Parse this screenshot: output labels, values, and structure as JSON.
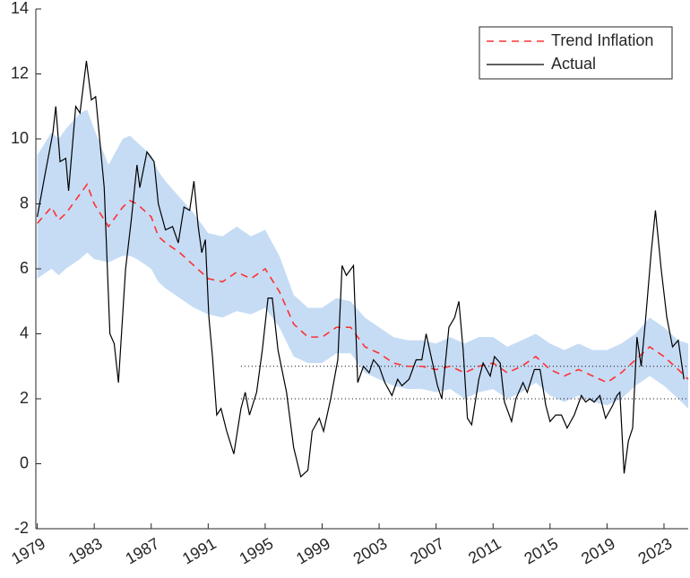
{
  "chart_data": {
    "type": "line",
    "xlim": [
      1978.9,
      2024.7
    ],
    "ylim": [
      -2,
      14
    ],
    "xticks": [
      1979,
      1983,
      1987,
      1991,
      1995,
      1999,
      2003,
      2007,
      2011,
      2015,
      2019,
      2023
    ],
    "yticks": [
      -2,
      0,
      2,
      4,
      6,
      8,
      10,
      12,
      14
    ],
    "legend": "upper right",
    "x": [
      1979,
      1980,
      1980.5,
      1981,
      1982,
      1982.5,
      1983,
      1984,
      1985,
      1985.5,
      1986,
      1987,
      1987.5,
      1988,
      1989,
      1990,
      1991,
      1992,
      1993,
      1994,
      1995,
      1996,
      1997,
      1998,
      1999,
      2000,
      2001,
      2002,
      2003,
      2004,
      2005,
      2006,
      2007,
      2008,
      2009,
      2010,
      2011,
      2012,
      2013,
      2014,
      2015,
      2016,
      2017,
      2018,
      2019,
      2020,
      2021,
      2022,
      2023,
      2024,
      2024.7
    ],
    "band": {
      "color": "#c6dcf5",
      "upper": [
        9.5,
        10.2,
        10.0,
        10.3,
        10.8,
        10.9,
        10.3,
        9.2,
        10.0,
        10.1,
        9.9,
        9.5,
        9.0,
        8.7,
        8.2,
        7.7,
        7.1,
        7.0,
        7.3,
        7.0,
        7.2,
        6.4,
        5.2,
        4.8,
        4.8,
        5.1,
        5.0,
        4.5,
        4.2,
        3.9,
        3.8,
        3.8,
        3.7,
        3.9,
        3.7,
        3.9,
        3.9,
        3.6,
        3.8,
        4.0,
        3.7,
        3.5,
        3.7,
        3.5,
        3.5,
        3.7,
        4.0,
        4.5,
        4.2,
        3.8,
        3.7
      ],
      "lower": [
        5.7,
        6.0,
        5.8,
        6.0,
        6.3,
        6.5,
        6.3,
        6.2,
        6.4,
        6.4,
        6.3,
        6.0,
        5.6,
        5.4,
        5.1,
        4.8,
        4.6,
        4.5,
        4.7,
        4.6,
        4.8,
        4.2,
        3.3,
        3.1,
        3.1,
        3.4,
        3.4,
        2.8,
        2.6,
        2.4,
        2.3,
        2.3,
        2.2,
        2.3,
        2.0,
        2.2,
        2.3,
        2.0,
        2.2,
        2.5,
        2.1,
        1.9,
        2.1,
        1.9,
        1.8,
        2.0,
        2.4,
        2.7,
        2.4,
        2.0,
        1.7
      ]
    },
    "reference_lines": [
      {
        "y": 2,
        "x": [
          1993.3,
          2024.7
        ]
      },
      {
        "y": 3,
        "x": [
          1993.3,
          2024.7
        ]
      }
    ],
    "series": [
      {
        "name": "Trend Inflation",
        "color": "#ff3030",
        "dashed": true,
        "values": [
          7.4,
          7.9,
          7.5,
          7.7,
          8.3,
          8.6,
          8.0,
          7.3,
          7.9,
          8.1,
          8.0,
          7.6,
          7.0,
          6.8,
          6.5,
          6.1,
          5.7,
          5.6,
          5.9,
          5.7,
          6.0,
          5.3,
          4.3,
          3.9,
          3.9,
          4.2,
          4.2,
          3.6,
          3.4,
          3.1,
          3.0,
          3.0,
          2.9,
          3.0,
          2.8,
          3.0,
          3.1,
          2.8,
          3.0,
          3.3,
          2.9,
          2.7,
          2.9,
          2.7,
          2.5,
          2.8,
          3.2,
          3.6,
          3.3,
          2.9,
          2.6
        ]
      },
      {
        "name": "Actual",
        "color": "#000000",
        "dashed": false,
        "x": [
          1979,
          1979.5,
          1980.1,
          1980.3,
          1980.6,
          1981.0,
          1981.2,
          1981.7,
          1982.0,
          1982.45,
          1982.8,
          1983.1,
          1983.7,
          1984.1,
          1984.4,
          1984.7,
          1985.2,
          1985.6,
          1986.0,
          1986.2,
          1986.7,
          1987.2,
          1987.5,
          1988.0,
          1988.5,
          1988.9,
          1989.3,
          1989.7,
          1990.0,
          1990.3,
          1990.55,
          1990.8,
          1991.05,
          1991.3,
          1991.6,
          1991.9,
          1992.3,
          1992.8,
          1993.3,
          1993.6,
          1993.9,
          1994.4,
          1994.8,
          1995.2,
          1995.5,
          1995.9,
          1996.5,
          1997.0,
          1997.5,
          1998.0,
          1998.3,
          1998.8,
          1999.1,
          1999.6,
          2000.1,
          2000.4,
          2000.7,
          2001.2,
          2001.5,
          2001.9,
          2002.3,
          2002.6,
          2003.0,
          2003.4,
          2003.9,
          2004.3,
          2004.6,
          2005.1,
          2005.6,
          2006.0,
          2006.3,
          2006.7,
          2007.1,
          2007.4,
          2007.9,
          2008.3,
          2008.6,
          2008.9,
          2009.2,
          2009.5,
          2010.0,
          2010.3,
          2010.8,
          2011.1,
          2011.5,
          2011.8,
          2012.3,
          2012.6,
          2013.1,
          2013.4,
          2013.9,
          2014.3,
          2014.7,
          2015.0,
          2015.4,
          2015.8,
          2016.2,
          2016.7,
          2017.2,
          2017.5,
          2017.8,
          2018.1,
          2018.5,
          2018.9,
          2019.4,
          2019.7,
          2019.9,
          2020.2,
          2020.5,
          2020.8,
          2021.1,
          2021.4,
          2021.7,
          2022.1,
          2022.4,
          2022.8,
          2023.2,
          2023.6,
          2024.0,
          2024.4
        ],
        "values": [
          7.6,
          8.8,
          10.2,
          11.0,
          9.3,
          9.4,
          8.4,
          11.0,
          10.8,
          12.4,
          11.2,
          11.3,
          8.5,
          4.0,
          3.7,
          2.5,
          6.0,
          7.5,
          9.2,
          8.5,
          9.6,
          9.3,
          8.0,
          7.2,
          7.3,
          6.8,
          7.9,
          7.8,
          8.7,
          7.3,
          6.5,
          6.9,
          4.5,
          3.3,
          1.5,
          1.7,
          1.0,
          0.3,
          1.7,
          2.2,
          1.5,
          2.2,
          3.5,
          5.1,
          5.1,
          3.5,
          2.2,
          0.5,
          -0.4,
          -0.2,
          1.0,
          1.4,
          1.0,
          2.0,
          3.2,
          6.1,
          5.8,
          6.1,
          2.5,
          3.0,
          2.8,
          3.2,
          3.0,
          2.5,
          2.1,
          2.6,
          2.4,
          2.6,
          3.2,
          3.2,
          4.0,
          3.2,
          2.4,
          2.0,
          4.2,
          4.5,
          5.0,
          3.5,
          1.4,
          1.2,
          2.6,
          3.1,
          2.7,
          3.3,
          3.1,
          1.9,
          1.3,
          2.0,
          2.5,
          2.2,
          2.9,
          2.9,
          1.8,
          1.3,
          1.5,
          1.5,
          1.1,
          1.5,
          2.1,
          1.9,
          2.0,
          1.9,
          2.1,
          1.4,
          1.8,
          2.1,
          2.2,
          -0.3,
          0.7,
          1.1,
          3.9,
          3.0,
          4.4,
          6.5,
          7.8,
          6.0,
          4.5,
          3.6,
          3.8,
          2.6
        ]
      }
    ]
  }
}
